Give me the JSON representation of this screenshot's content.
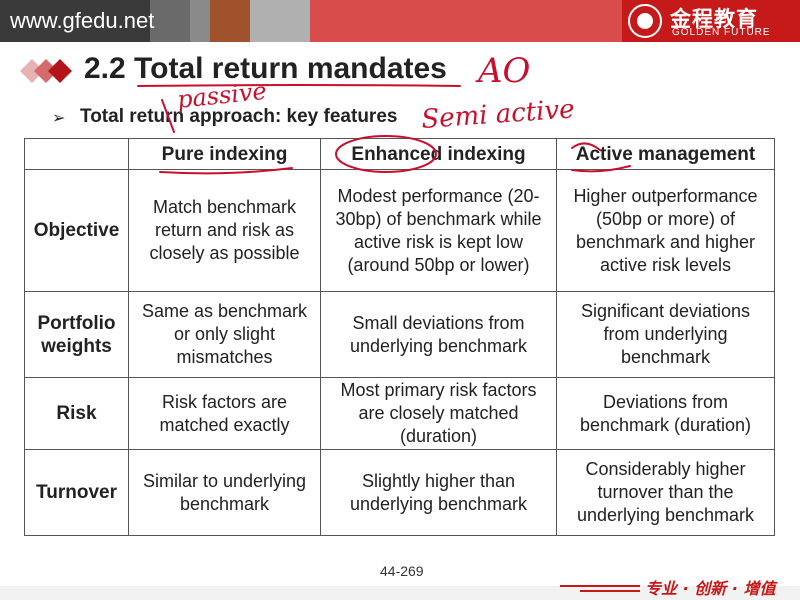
{
  "header": {
    "site_url": "www.gfedu.net",
    "logo_cn": "金程教育",
    "logo_en": "GOLDEN FUTURE"
  },
  "slide": {
    "title": "2.2 Total return mandates",
    "subtitle": "Total return approach: key features"
  },
  "table": {
    "columns": [
      "",
      "Pure indexing",
      "Enhanced indexing",
      "Active management"
    ],
    "rows": [
      {
        "label": "Objective",
        "cells": [
          "Match benchmark return and risk as closely as possible",
          "Modest performance (20-30bp) of benchmark while active risk is kept low (around 50bp or lower)",
          "Higher outperformance (50bp or more) of benchmark and higher active risk levels"
        ]
      },
      {
        "label": "Portfolio weights",
        "cells": [
          "Same as benchmark or only slight mismatches",
          "Small deviations from underlying benchmark",
          "Significant deviations from underlying benchmark"
        ]
      },
      {
        "label": "Risk",
        "cells": [
          "Risk factors are matched exactly",
          "Most primary risk factors are closely matched (duration)",
          "Deviations from benchmark (duration)"
        ]
      },
      {
        "label": "Turnover",
        "cells": [
          "Similar to underlying benchmark",
          "Slightly higher than underlying benchmark",
          "Considerably higher turnover than the underlying benchmark"
        ]
      }
    ]
  },
  "annotations": {
    "ao": "AO",
    "passive": "passive",
    "semi_active": "Semi active"
  },
  "footer": {
    "page_number": "44-269",
    "slogan": "专业 · 创新 · 增值"
  }
}
